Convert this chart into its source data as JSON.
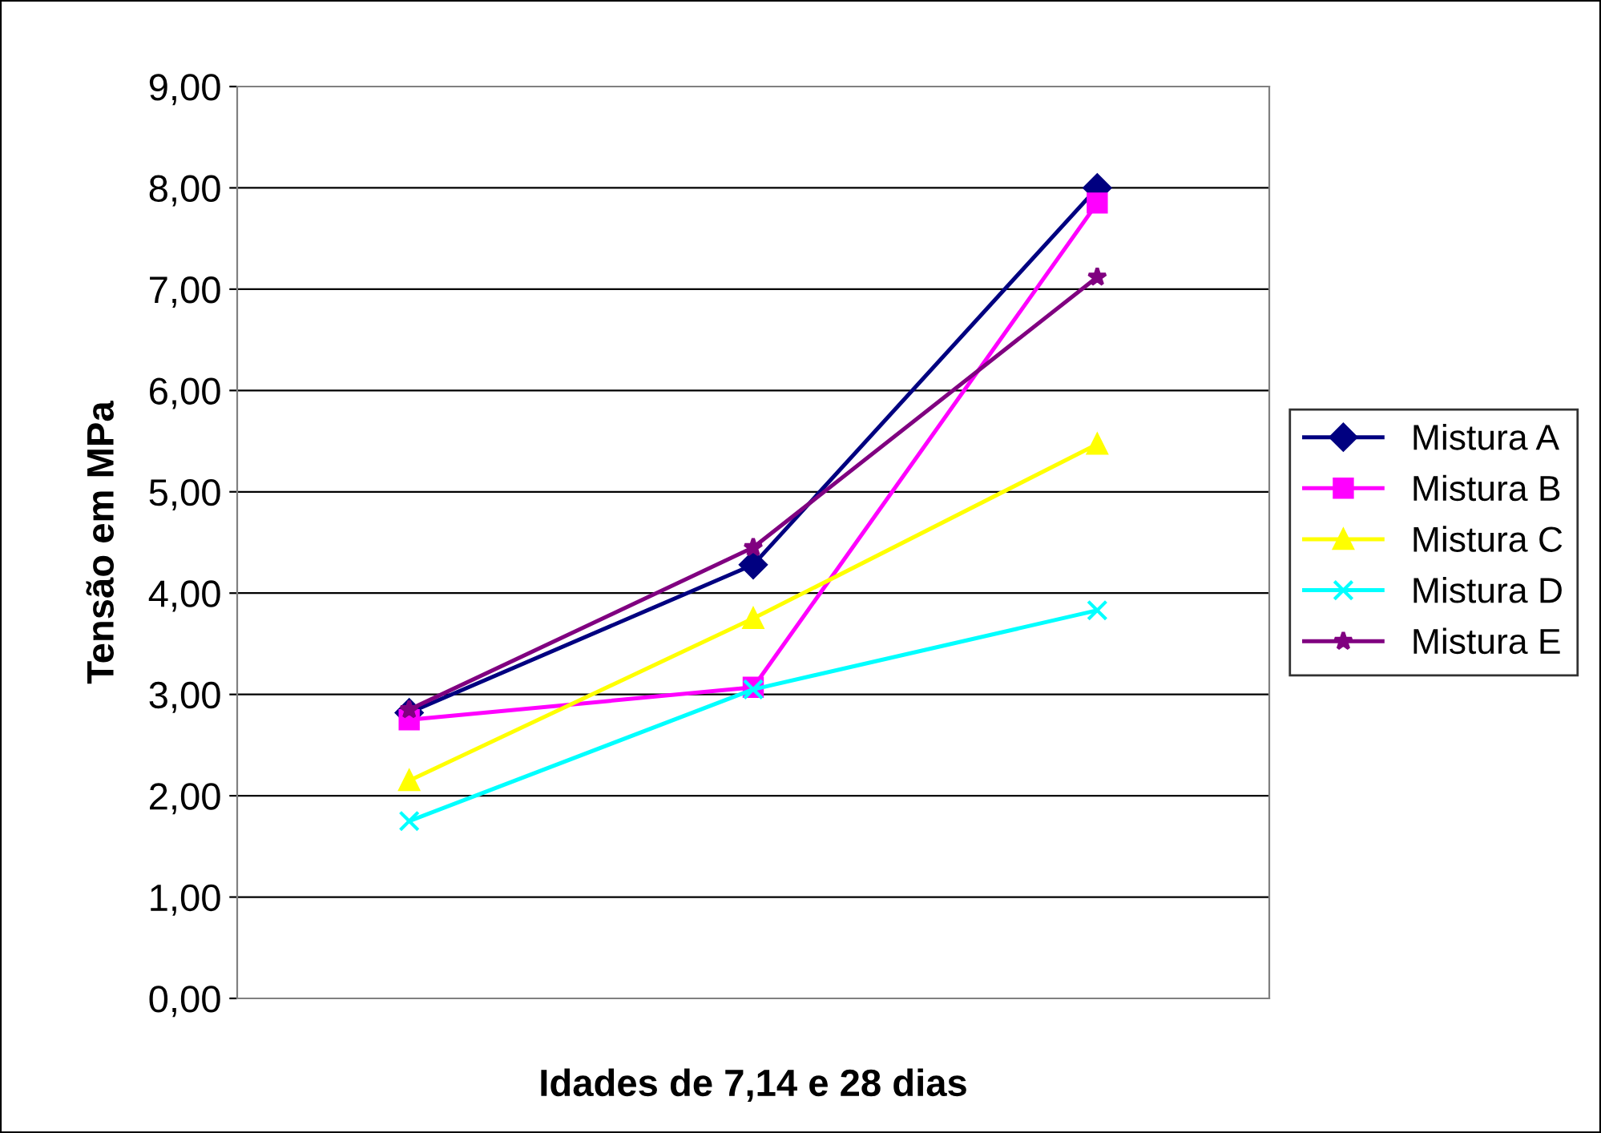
{
  "chart_data": {
    "type": "line",
    "xlabel": "Idades de 7,14 e 28 dias",
    "ylabel": "Tensão em MPa",
    "categories": [
      null,
      null,
      null
    ],
    "ylim": [
      0,
      9
    ],
    "yticks": [
      {
        "value": 0,
        "label": "0,00"
      },
      {
        "value": 1,
        "label": "1,00"
      },
      {
        "value": 2,
        "label": "2,00"
      },
      {
        "value": 3,
        "label": "3,00"
      },
      {
        "value": 4,
        "label": "4,00"
      },
      {
        "value": 5,
        "label": "5,00"
      },
      {
        "value": 6,
        "label": "6,00"
      },
      {
        "value": 7,
        "label": "7,00"
      },
      {
        "value": 8,
        "label": "8,00"
      },
      {
        "value": 9,
        "label": "9,00"
      }
    ],
    "grid": "y",
    "legend": "right",
    "line_style": "solid",
    "series": [
      {
        "name": "Mistura A",
        "color": "#000080",
        "marker": "diamond",
        "values": [
          2.82,
          4.28,
          8.0
        ]
      },
      {
        "name": "Mistura B",
        "color": "#ff00ff",
        "marker": "square",
        "values": [
          2.75,
          3.07,
          7.85
        ]
      },
      {
        "name": "Mistura C",
        "color": "#ffff00",
        "marker": "triangle",
        "values": [
          2.15,
          3.75,
          5.47
        ]
      },
      {
        "name": "Mistura D",
        "color": "#00ffff",
        "marker": "cross",
        "values": [
          1.75,
          3.05,
          3.83
        ]
      },
      {
        "name": "Mistura E",
        "color": "#800080",
        "marker": "star",
        "values": [
          2.85,
          4.45,
          7.12
        ]
      }
    ]
  }
}
